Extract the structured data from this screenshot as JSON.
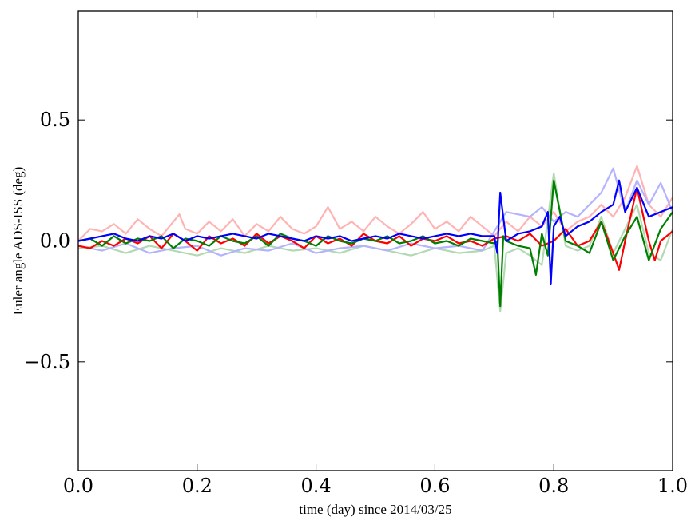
{
  "chart_data": {
    "type": "line",
    "title": "",
    "xlabel": "time (day) since 2014/03/25",
    "ylabel": "Euler angle ADS-ISS (deg)",
    "xlim": [
      0.0,
      1.0
    ],
    "ylim": [
      -0.95,
      0.95
    ],
    "grid": false,
    "legend": "none",
    "x_ticks": [
      "0.0",
      "0.2",
      "0.4",
      "0.6",
      "0.8",
      "1.0"
    ],
    "y_ticks": [
      "−0.5",
      "0.0",
      "0.5"
    ],
    "x_tick_values": [
      0.0,
      0.2,
      0.4,
      0.6,
      0.8,
      1.0
    ],
    "y_tick_values": [
      -0.5,
      0.0,
      0.5
    ],
    "colors": {
      "red": "#ff0000",
      "green": "#008000",
      "blue": "#0000ff",
      "red_faint": "#ffb3b3",
      "green_faint": "#b3d9b3",
      "blue_faint": "#b3b3ff"
    },
    "series": [
      {
        "color": "#ffb3b3",
        "x": [
          0.0,
          0.02,
          0.04,
          0.06,
          0.08,
          0.1,
          0.12,
          0.14,
          0.16,
          0.17,
          0.18,
          0.2,
          0.22,
          0.24,
          0.26,
          0.28,
          0.3,
          0.32,
          0.34,
          0.36,
          0.38,
          0.4,
          0.42,
          0.44,
          0.46,
          0.48,
          0.5,
          0.52,
          0.54,
          0.56,
          0.58,
          0.6,
          0.62,
          0.64,
          0.66,
          0.68,
          0.7,
          0.72,
          0.74,
          0.76,
          0.78,
          0.8,
          0.82,
          0.84,
          0.86,
          0.88,
          0.9,
          0.92,
          0.94,
          0.96,
          0.98,
          1.0
        ],
        "values": [
          0.0,
          0.05,
          0.04,
          0.07,
          0.03,
          0.09,
          0.05,
          0.02,
          0.08,
          0.11,
          0.05,
          0.03,
          0.08,
          0.04,
          0.09,
          0.02,
          0.07,
          0.04,
          0.1,
          0.05,
          0.03,
          0.06,
          0.14,
          0.05,
          0.08,
          0.04,
          0.1,
          0.06,
          0.03,
          0.07,
          0.12,
          0.05,
          0.08,
          0.04,
          0.1,
          0.06,
          0.02,
          0.08,
          0.04,
          0.1,
          0.06,
          0.12,
          0.04,
          0.08,
          0.1,
          0.15,
          0.1,
          0.18,
          0.31,
          0.15,
          0.1,
          0.18
        ]
      },
      {
        "color": "#b3d9b3",
        "x": [
          0.0,
          0.04,
          0.08,
          0.12,
          0.16,
          0.2,
          0.24,
          0.28,
          0.32,
          0.36,
          0.4,
          0.44,
          0.48,
          0.52,
          0.56,
          0.6,
          0.64,
          0.68,
          0.7,
          0.71,
          0.72,
          0.74,
          0.76,
          0.78,
          0.8,
          0.82,
          0.84,
          0.86,
          0.88,
          0.9,
          0.92,
          0.94,
          0.96,
          0.98,
          1.0
        ],
        "values": [
          -0.03,
          -0.02,
          -0.05,
          -0.02,
          -0.04,
          -0.06,
          -0.03,
          -0.05,
          -0.02,
          -0.04,
          -0.03,
          -0.05,
          -0.02,
          -0.04,
          -0.06,
          -0.03,
          -0.05,
          -0.04,
          -0.02,
          -0.29,
          -0.05,
          -0.03,
          -0.06,
          -0.1,
          0.28,
          -0.02,
          -0.04,
          -0.02,
          0.1,
          -0.05,
          0.05,
          0.15,
          -0.05,
          -0.08,
          0.05
        ]
      },
      {
        "color": "#b3b3ff",
        "x": [
          0.0,
          0.04,
          0.08,
          0.12,
          0.16,
          0.2,
          0.24,
          0.28,
          0.32,
          0.36,
          0.4,
          0.44,
          0.48,
          0.52,
          0.56,
          0.6,
          0.64,
          0.68,
          0.72,
          0.76,
          0.78,
          0.8,
          0.82,
          0.84,
          0.86,
          0.88,
          0.9,
          0.92,
          0.94,
          0.96,
          0.98,
          1.0
        ],
        "values": [
          -0.02,
          -0.04,
          -0.01,
          -0.05,
          -0.03,
          -0.02,
          -0.06,
          -0.03,
          -0.04,
          -0.01,
          -0.05,
          -0.03,
          -0.02,
          -0.04,
          -0.01,
          -0.03,
          -0.02,
          -0.04,
          0.12,
          0.1,
          0.14,
          0.08,
          0.12,
          0.1,
          0.15,
          0.2,
          0.3,
          0.12,
          0.25,
          0.15,
          0.24,
          0.12
        ]
      },
      {
        "color": "#ff0000",
        "x": [
          0.0,
          0.02,
          0.04,
          0.06,
          0.08,
          0.1,
          0.12,
          0.14,
          0.16,
          0.18,
          0.2,
          0.22,
          0.24,
          0.26,
          0.28,
          0.3,
          0.32,
          0.34,
          0.36,
          0.38,
          0.4,
          0.42,
          0.44,
          0.46,
          0.48,
          0.5,
          0.52,
          0.54,
          0.56,
          0.58,
          0.6,
          0.62,
          0.64,
          0.66,
          0.68,
          0.7,
          0.72,
          0.74,
          0.76,
          0.78,
          0.8,
          0.82,
          0.84,
          0.86,
          0.88,
          0.9,
          0.91,
          0.92,
          0.94,
          0.96,
          0.97,
          0.98,
          1.0
        ],
        "values": [
          -0.02,
          -0.03,
          0.0,
          -0.02,
          0.01,
          -0.01,
          0.02,
          -0.03,
          0.03,
          0.0,
          -0.04,
          0.02,
          -0.01,
          0.01,
          -0.02,
          0.03,
          -0.01,
          0.02,
          0.0,
          -0.03,
          0.02,
          -0.01,
          0.01,
          -0.02,
          0.03,
          0.0,
          -0.01,
          0.02,
          -0.02,
          0.01,
          0.0,
          0.02,
          -0.01,
          0.0,
          -0.02,
          0.01,
          0.02,
          0.0,
          0.03,
          -0.02,
          0.0,
          0.05,
          -0.02,
          0.0,
          0.08,
          -0.05,
          -0.12,
          0.0,
          0.22,
          0.0,
          -0.08,
          0.0,
          0.04
        ]
      },
      {
        "color": "#008000",
        "x": [
          0.0,
          0.02,
          0.04,
          0.06,
          0.08,
          0.1,
          0.12,
          0.14,
          0.16,
          0.18,
          0.2,
          0.22,
          0.24,
          0.26,
          0.28,
          0.3,
          0.32,
          0.34,
          0.36,
          0.38,
          0.4,
          0.42,
          0.44,
          0.46,
          0.48,
          0.5,
          0.52,
          0.54,
          0.56,
          0.58,
          0.6,
          0.62,
          0.64,
          0.66,
          0.68,
          0.7,
          0.705,
          0.71,
          0.715,
          0.72,
          0.74,
          0.76,
          0.77,
          0.78,
          0.79,
          0.8,
          0.82,
          0.84,
          0.86,
          0.88,
          0.9,
          0.92,
          0.94,
          0.96,
          0.98,
          1.0
        ],
        "values": [
          0.0,
          0.01,
          -0.02,
          0.02,
          -0.01,
          0.01,
          0.0,
          0.02,
          -0.03,
          0.01,
          0.0,
          -0.02,
          0.02,
          0.0,
          -0.01,
          0.02,
          -0.02,
          0.03,
          0.01,
          0.0,
          -0.02,
          0.02,
          0.0,
          -0.01,
          0.01,
          0.0,
          0.02,
          -0.01,
          0.0,
          0.02,
          -0.01,
          0.0,
          -0.02,
          0.01,
          0.0,
          -0.01,
          0.0,
          -0.27,
          0.02,
          0.0,
          -0.02,
          -0.03,
          -0.14,
          0.03,
          -0.06,
          0.25,
          0.0,
          -0.02,
          -0.05,
          0.08,
          -0.08,
          0.02,
          0.1,
          -0.08,
          0.05,
          0.12
        ]
      },
      {
        "color": "#0000ff",
        "x": [
          0.0,
          0.02,
          0.04,
          0.06,
          0.08,
          0.1,
          0.12,
          0.14,
          0.16,
          0.18,
          0.2,
          0.22,
          0.24,
          0.26,
          0.28,
          0.3,
          0.32,
          0.34,
          0.36,
          0.38,
          0.4,
          0.42,
          0.44,
          0.46,
          0.48,
          0.5,
          0.52,
          0.54,
          0.56,
          0.58,
          0.6,
          0.62,
          0.64,
          0.66,
          0.68,
          0.7,
          0.705,
          0.71,
          0.72,
          0.74,
          0.76,
          0.78,
          0.79,
          0.795,
          0.8,
          0.81,
          0.82,
          0.84,
          0.86,
          0.88,
          0.9,
          0.91,
          0.92,
          0.94,
          0.96,
          0.98,
          1.0
        ],
        "values": [
          0.0,
          0.01,
          0.02,
          0.03,
          0.01,
          0.0,
          0.02,
          0.01,
          0.03,
          0.0,
          0.02,
          0.01,
          0.02,
          0.03,
          0.02,
          0.01,
          0.03,
          0.02,
          0.01,
          0.0,
          0.02,
          0.01,
          0.02,
          0.0,
          0.01,
          0.02,
          0.01,
          0.03,
          0.02,
          0.01,
          0.02,
          0.03,
          0.02,
          0.03,
          0.02,
          0.02,
          -0.05,
          0.2,
          0.0,
          0.03,
          0.04,
          0.06,
          0.12,
          -0.18,
          0.06,
          0.1,
          0.02,
          0.06,
          0.08,
          0.12,
          0.15,
          0.25,
          0.12,
          0.22,
          0.1,
          0.12,
          0.14
        ]
      }
    ]
  }
}
